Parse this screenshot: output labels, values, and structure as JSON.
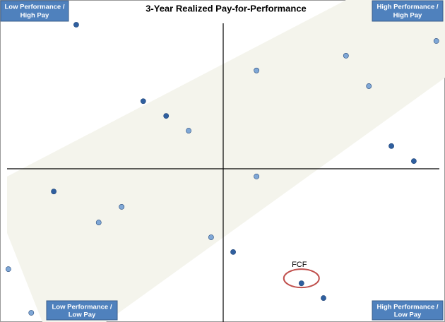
{
  "chart_data": {
    "type": "scatter",
    "title": "3-Year Realized Pay-for-Performance",
    "xlim": [
      0,
      100
    ],
    "ylim": [
      0,
      100
    ],
    "x": [
      16.0,
      31.5,
      36.8,
      42.0,
      57.7,
      78.4,
      83.7,
      99.3,
      88.9,
      94.1,
      57.7,
      10.8,
      26.5,
      21.2,
      47.2,
      52.3,
      0.3,
      5.6,
      68.1,
      73.2
    ],
    "y": [
      98.8,
      72.9,
      67.9,
      62.9,
      83.3,
      88.3,
      78.0,
      93.3,
      57.7,
      52.6,
      47.4,
      42.3,
      37.1,
      31.8,
      26.8,
      21.8,
      16.0,
      1.2,
      11.2,
      6.2
    ],
    "colors": [
      "#2f5f9f",
      "#2f5f9f",
      "#2f5f9f",
      "#7fa7d6",
      "#7fa7d6",
      "#7fa7d6",
      "#7fa7d6",
      "#7fa7d6",
      "#2f5f9f",
      "#2f5f9f",
      "#7fa7d6",
      "#2f5f9f",
      "#7fa7d6",
      "#7fa7d6",
      "#7fa7d6",
      "#2f5f9f",
      "#7fa7d6",
      "#7fa7d6",
      "#2f5f9f",
      "#2f5f9f"
    ],
    "quadrant_labels": {
      "top_left": [
        "Low Performance /",
        "High Pay"
      ],
      "top_right": [
        "High Performance /",
        "High Pay"
      ],
      "bottom_left": [
        "Low Performance /",
        "Low Pay"
      ],
      "bottom_right": [
        "High Performance /",
        "Low Pay"
      ]
    },
    "annotation": {
      "text": "FCF",
      "x": 68.1,
      "y": 11.2
    }
  }
}
